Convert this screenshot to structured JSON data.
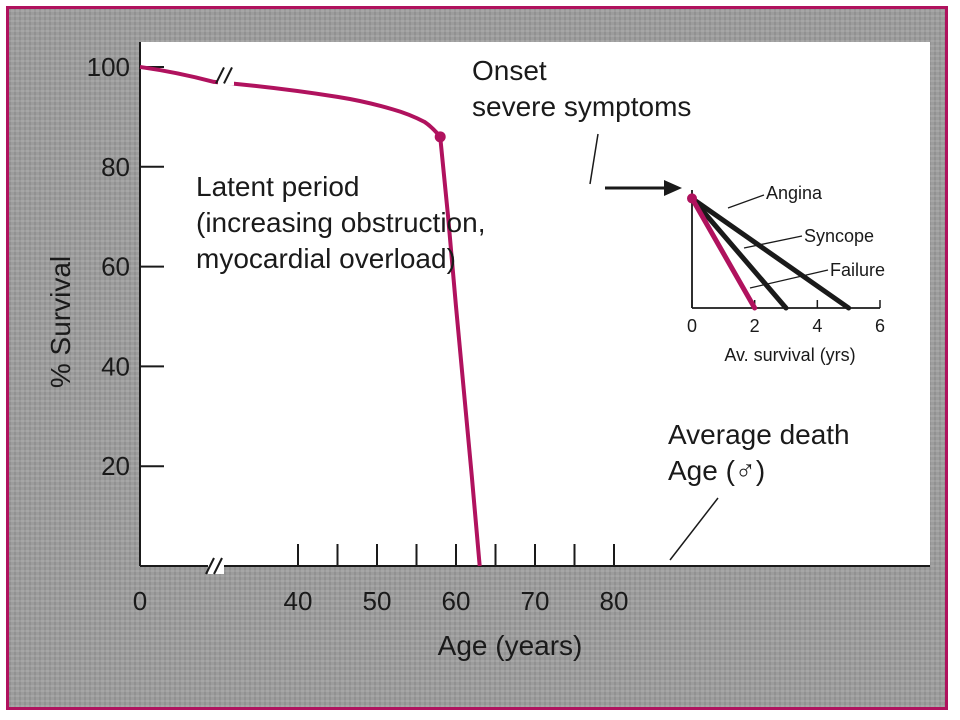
{
  "colors": {
    "accent": "#b0125e",
    "frame": "#b0125e",
    "axis": "#1a1a1a",
    "background": "#9c9c9c",
    "plot": "#ffffff"
  },
  "chart_data": [
    {
      "type": "line",
      "xlabel": "Age (years)",
      "ylabel": "% Survival",
      "xlim": [
        0,
        80
      ],
      "ylim": [
        0,
        100
      ],
      "x_axis_break": true,
      "x_ticks": [
        0,
        40,
        50,
        60,
        70,
        80
      ],
      "x_tick_labels": [
        "0",
        "40",
        "50",
        "60",
        "70",
        "80"
      ],
      "y_ticks": [
        20,
        40,
        60,
        80,
        100
      ],
      "y_tick_labels": [
        "20",
        "40",
        "60",
        "80",
        "100"
      ],
      "series": [
        {
          "color": "#b0125e",
          "x": [
            0,
            35,
            45,
            52,
            56,
            58,
            59,
            60,
            61,
            62,
            63
          ],
          "y": [
            100,
            97,
            94,
            91.5,
            89,
            86,
            70,
            52,
            35,
            18,
            0
          ]
        }
      ],
      "annotations": {
        "onset": "Onset\nsevere symptoms",
        "latent": "Latent period\n(increasing obstruction,\nmyocardial overload)",
        "death": "Average death\nAge (♂)"
      },
      "marker": {
        "x": 58,
        "y": 86
      }
    },
    {
      "type": "line",
      "xlabel": "Av. survival (yrs)",
      "xlim": [
        0,
        6
      ],
      "x_ticks": [
        0,
        2,
        4,
        6
      ],
      "x_tick_labels": [
        "0",
        "2",
        "4",
        "6"
      ],
      "series": [
        {
          "name": "Angina",
          "x": [
            0,
            5
          ],
          "y": [
            86,
            60
          ],
          "color": "#1a1a1a"
        },
        {
          "name": "Syncope",
          "x": [
            0,
            3
          ],
          "y": [
            86,
            60
          ],
          "color": "#1a1a1a"
        },
        {
          "name": "Failure",
          "x": [
            0,
            2
          ],
          "y": [
            86,
            60
          ],
          "color": "#b0125e"
        }
      ]
    }
  ]
}
